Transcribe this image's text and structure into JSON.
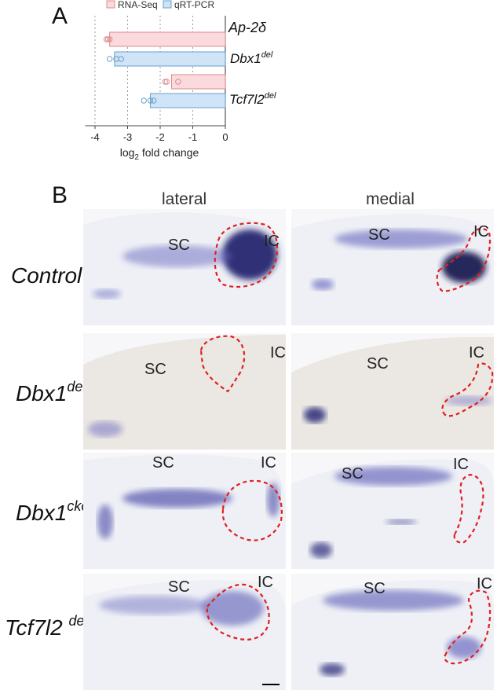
{
  "panel_a": {
    "letter": "A",
    "legend": [
      "RNA-Seq",
      "qRT-PCR"
    ],
    "gene": "Ap-2",
    "gene_suffix": "δ",
    "groups": [
      {
        "name": "Dbx1",
        "suffix": "del"
      },
      {
        "name": "Tcf7l2",
        "suffix": "del"
      }
    ],
    "significance": "****"
  },
  "chart_data": {
    "type": "bar",
    "orientation": "horizontal",
    "xlabel_main": "log",
    "xlabel_sub": "2",
    "xlabel_rest": " fold change",
    "xlim": [
      -4.3,
      0
    ],
    "xticks": [
      "-4",
      "-3",
      "-2",
      "-1",
      "0"
    ],
    "grid": "vertical dashed",
    "legend_position": "top",
    "categories": [
      "Dbx1del",
      "Tcf7l2del"
    ],
    "series": [
      {
        "name": "RNA-Seq",
        "color": "#fadadd",
        "edge": "#e08a8a",
        "values": [
          -3.55,
          -1.65
        ],
        "points": [
          [
            -3.6,
            -3.55,
            -3.65
          ],
          [
            -1.8,
            -1.45,
            -1.85
          ]
        ],
        "significance": [
          "****",
          "****"
        ]
      },
      {
        "name": "qRT-PCR",
        "color": "#cfe4f6",
        "edge": "#6a9fd0",
        "values": [
          -3.4,
          -2.3
        ],
        "points": [
          [
            -3.55,
            -3.35,
            -3.2
          ],
          [
            -2.5,
            -2.3,
            -2.2
          ]
        ],
        "significance": [
          "****",
          "****"
        ]
      }
    ]
  },
  "panel_b": {
    "letter": "B",
    "columns": [
      "lateral",
      "medial"
    ],
    "rows": [
      {
        "name": "Control",
        "suffix": ""
      },
      {
        "name": "Dbx1",
        "suffix": "del"
      },
      {
        "name": "Dbx1",
        "suffix": "cko"
      },
      {
        "name": "Tcf7l2 ",
        "suffix": "del"
      }
    ],
    "labels": {
      "sc": "SC",
      "ic": "IC"
    }
  }
}
